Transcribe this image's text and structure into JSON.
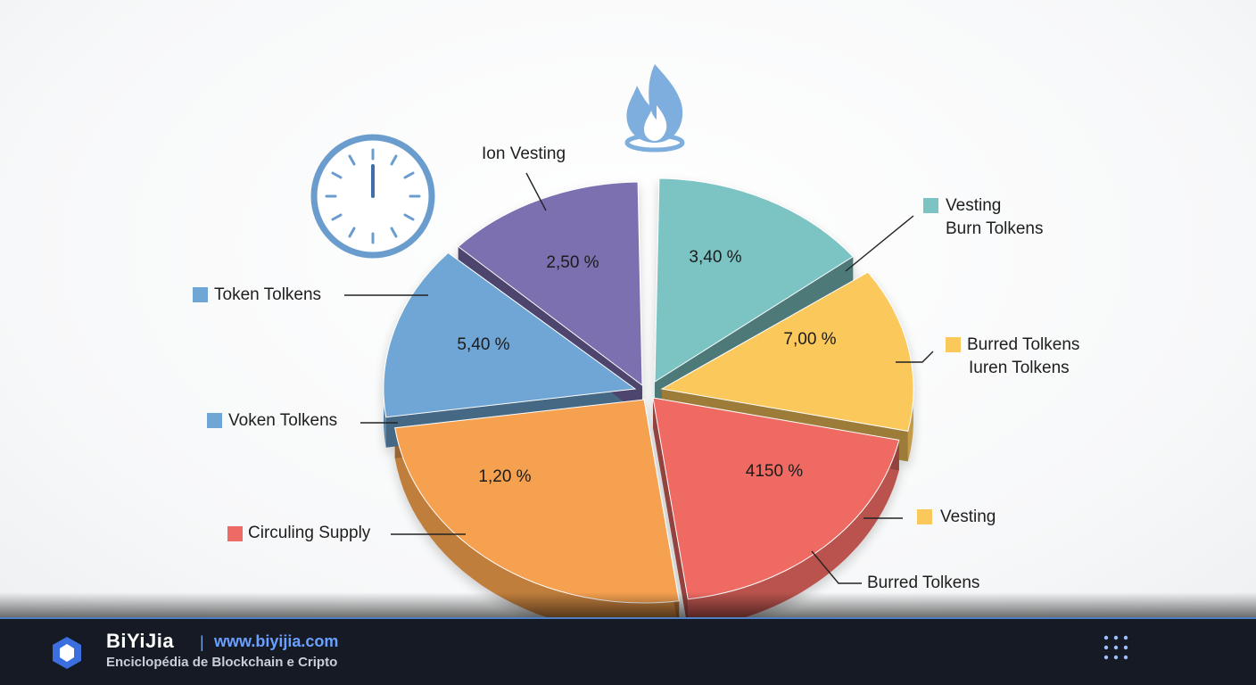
{
  "chart_data": {
    "type": "pie",
    "title": "",
    "slices": [
      {
        "label_text": "3,40 %",
        "color": "#7cc3c3"
      },
      {
        "label_text": "7,00 %",
        "color": "#fbc85c"
      },
      {
        "label_text": "4150 %",
        "color": "#ee6a64"
      },
      {
        "label_text": "1,20 %",
        "color": "#f6a14f"
      },
      {
        "label_text": "5,40 %",
        "color": "#6fa6d6"
      },
      {
        "label_text": "2,50 %",
        "color": "#7c6fb0"
      }
    ],
    "callouts": [
      {
        "lines": [
          "Ion Vesting"
        ],
        "swatch": ""
      },
      {
        "lines": [
          "Vesting",
          "Burn Tolkens"
        ],
        "swatch": "#7cc3c3"
      },
      {
        "lines": [
          "Token Tolkens"
        ],
        "swatch": "#6fa6d6"
      },
      {
        "lines": [
          "Burred Tolkens",
          "Iuren Tolkens"
        ],
        "swatch": "#fbc85c"
      },
      {
        "lines": [
          "Voken Tolkens"
        ],
        "swatch": "#6fa6d6"
      },
      {
        "lines": [
          "Vesting"
        ],
        "swatch": "#fbc85c"
      },
      {
        "lines": [
          "Circuling Supply"
        ],
        "swatch": "#ee6a64"
      },
      {
        "lines": [
          "Burred Tolkens"
        ],
        "swatch": ""
      }
    ]
  },
  "icons": {
    "flame": "flame-icon",
    "clock": "clock-icon",
    "logo": "hexagon-logo-icon",
    "menu": "grid-menu-icon"
  },
  "footer": {
    "brand_name": "BiYiJia",
    "separator": "|",
    "url": "www.biyijia.com",
    "tagline": "Enciclopédia de Blockchain e Cripto"
  }
}
